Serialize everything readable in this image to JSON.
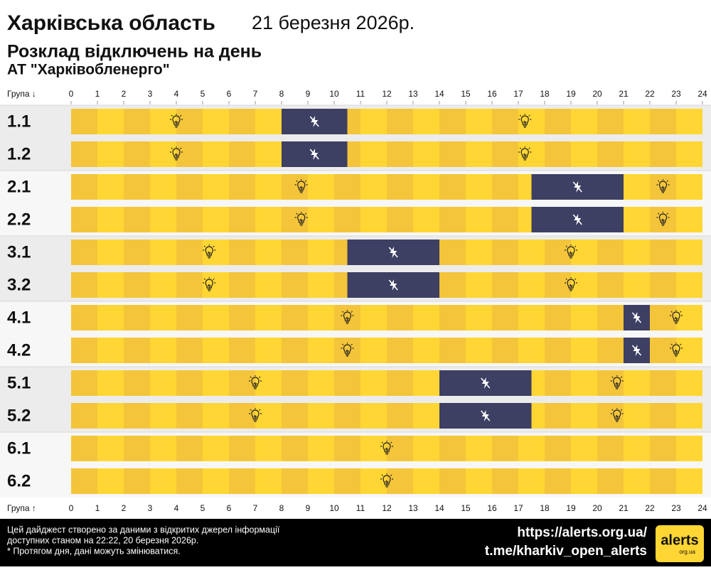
{
  "chart_data": {
    "type": "timeline",
    "title": "Харківська область",
    "date": "21 березня 2026р.",
    "subtitle": "Розклад відключень на день",
    "publisher": "АТ \"Харківобленерго\"",
    "x_label_top": "Група ↓",
    "x_label_bottom": "Група ↑",
    "xlim": [
      0,
      24
    ],
    "xticks": [
      0,
      1,
      2,
      3,
      4,
      5,
      6,
      7,
      8,
      9,
      10,
      11,
      12,
      13,
      14,
      15,
      16,
      17,
      18,
      19,
      20,
      21,
      22,
      23,
      24
    ],
    "categories": [
      "1.1",
      "1.2",
      "2.1",
      "2.2",
      "3.1",
      "3.2",
      "4.1",
      "4.2",
      "5.1",
      "5.2",
      "6.1",
      "6.2"
    ],
    "outages": [
      [
        [
          8,
          10.5
        ]
      ],
      [
        [
          8,
          10.5
        ]
      ],
      [
        [
          17.5,
          21
        ]
      ],
      [
        [
          17.5,
          21
        ]
      ],
      [
        [
          10.5,
          14
        ]
      ],
      [
        [
          10.5,
          14
        ]
      ],
      [
        [
          21,
          22
        ]
      ],
      [
        [
          21,
          22
        ]
      ],
      [
        [
          14,
          17.5
        ]
      ],
      [
        [
          14,
          17.5
        ]
      ],
      [],
      []
    ],
    "on_color": "#ffd633",
    "off_color": "#3d3f63",
    "footer": {
      "note": [
        "Цей дайджест створено за даними з відкритих джерел інформації",
        "доступних станом на 22:22, 20 березня 2026р.",
        "* Протягом дня, дані можуть змінюватися."
      ],
      "links": [
        "https://alerts.org.ua/",
        "t.me/kharkiv_open_alerts"
      ],
      "logo": "alerts",
      "logo_sub": "org.ua"
    }
  }
}
